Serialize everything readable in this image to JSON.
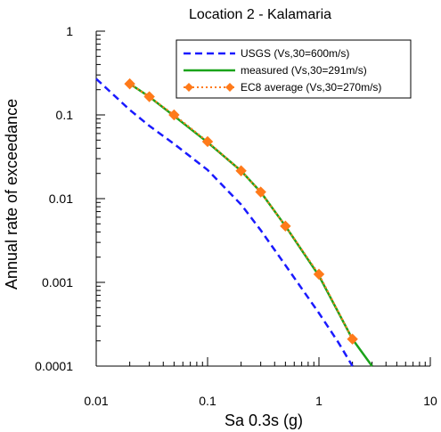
{
  "chart_data": {
    "type": "line",
    "title": "Location 2 - Kalamaria",
    "xlabel": "Sa 0.3s (g)",
    "ylabel": "Annual rate of exceedance",
    "xscale": "log",
    "yscale": "log",
    "xlim": [
      0.01,
      10
    ],
    "ylim": [
      0.0001,
      1
    ],
    "x_tick_labels": [
      "0.01",
      "0.1",
      "1",
      "10"
    ],
    "y_tick_labels": [
      "1",
      "0.1",
      "0.01",
      "0.001",
      "0.0001"
    ],
    "grid": false,
    "legend_position": "top-right",
    "series": [
      {
        "name": "USGS (Vs,30=600m/s)",
        "style": "dashed",
        "color": "#1a1aff",
        "x": [
          0.01,
          0.02,
          0.03,
          0.05,
          0.1,
          0.2,
          0.3,
          0.5,
          1.0,
          1.5,
          2.0
        ],
        "y": [
          0.27,
          0.115,
          0.074,
          0.045,
          0.022,
          0.0085,
          0.0042,
          0.0016,
          0.00043,
          0.00019,
          0.0001
        ]
      },
      {
        "name": "measured (Vs,30=291m/s)",
        "style": "solid",
        "color": "#1aa31a",
        "x": [
          0.02,
          0.03,
          0.05,
          0.1,
          0.2,
          0.3,
          0.5,
          1.0,
          2.0,
          3.0
        ],
        "y": [
          0.235,
          0.165,
          0.097,
          0.047,
          0.0215,
          0.012,
          0.0047,
          0.0012,
          0.00021,
          0.0001
        ]
      },
      {
        "name": "EC8 average (Vs,30=270m/s)",
        "style": "dotted-diamond",
        "color": "#ff7a1a",
        "x": [
          0.02,
          0.03,
          0.05,
          0.1,
          0.2,
          0.3,
          0.5,
          1.0,
          2.0
        ],
        "y": [
          0.235,
          0.165,
          0.1,
          0.048,
          0.0215,
          0.012,
          0.0047,
          0.00125,
          0.00021
        ]
      }
    ]
  }
}
